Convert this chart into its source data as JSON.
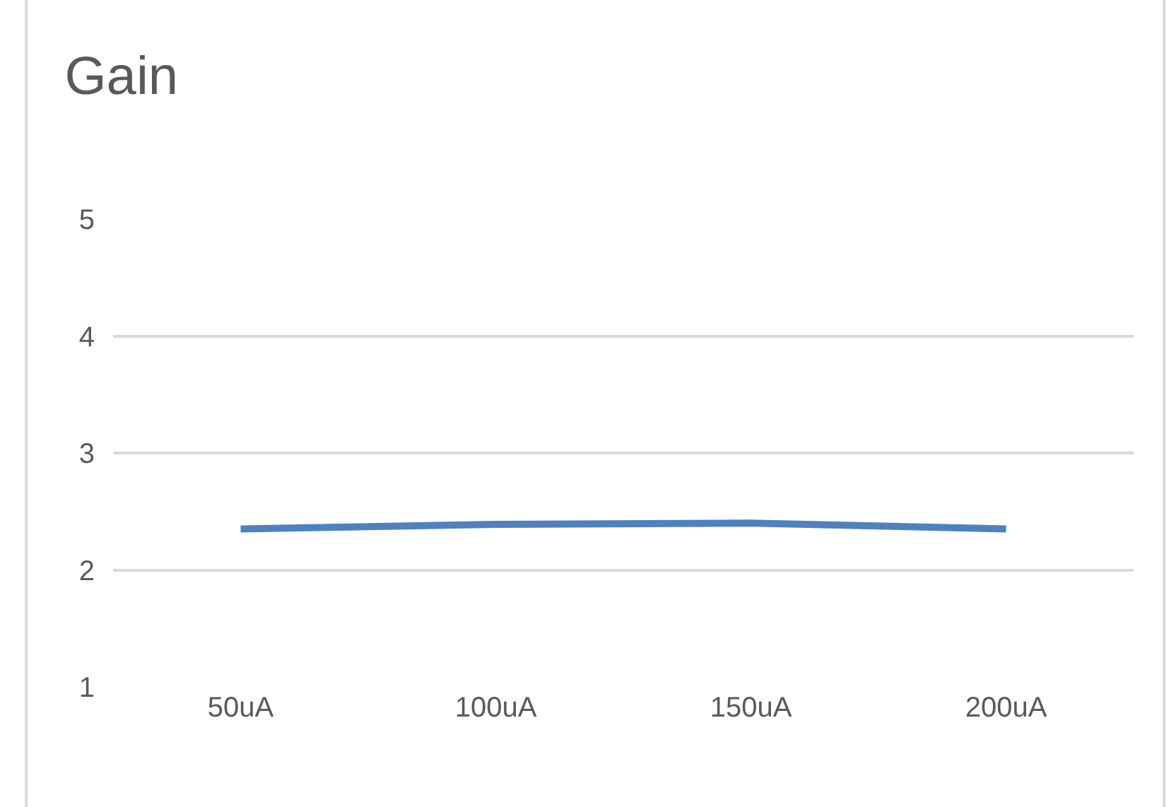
{
  "chart_data": {
    "type": "line",
    "title": "Gain",
    "categories": [
      "50uA",
      "100uA",
      "150uA",
      "200uA"
    ],
    "series": [
      {
        "color": "#4f81bd",
        "values": [
          2.35,
          2.39,
          2.4,
          2.35
        ]
      }
    ],
    "ylim": [
      1,
      5
    ],
    "yticks": [
      1,
      2,
      3,
      4,
      5
    ],
    "grid": "y",
    "marker": "none",
    "line_style": "solid",
    "legend": false
  }
}
